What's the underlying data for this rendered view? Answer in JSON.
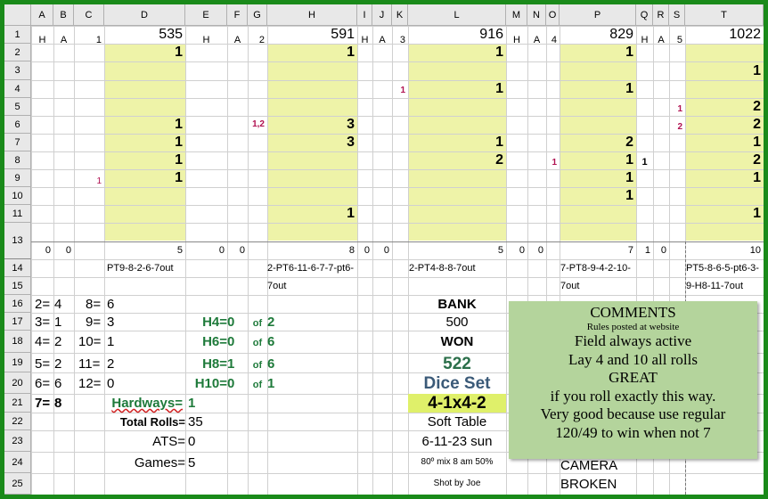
{
  "columns": [
    "A",
    "B",
    "C",
    "D",
    "E",
    "F",
    "G",
    "H",
    "I",
    "J",
    "K",
    "L",
    "M",
    "N",
    "O",
    "P",
    "Q",
    "R",
    "S",
    "T"
  ],
  "rows": [
    "1",
    "2",
    "3",
    "4",
    "5",
    "6",
    "7",
    "8",
    "9",
    "10",
    "11",
    "13",
    "14",
    "15",
    "16",
    "17",
    "18",
    "19",
    "20",
    "21",
    "22",
    "23",
    "24",
    "25"
  ],
  "row1": {
    "a": "H",
    "b": "A",
    "c": "1",
    "d": "535",
    "e": "H",
    "f": "A",
    "g": "2",
    "h": "591",
    "i": "H",
    "j": "A",
    "k": "3",
    "l": "916",
    "m": "H",
    "n": "A",
    "o": "4",
    "p": "829",
    "q": "H",
    "r": "A",
    "s": "5",
    "t": "1022"
  },
  "d_col": {
    "r2": "1",
    "r6": "1",
    "r7": "1",
    "r8": "1",
    "r9": "1"
  },
  "c_col": {
    "r9": "1"
  },
  "g_col": {
    "r6": "1,2"
  },
  "h_col": {
    "r2": "1",
    "r6": "3",
    "r7": "3",
    "r11": "1"
  },
  "k_col": {
    "r4": "1"
  },
  "l_col": {
    "r2": "1",
    "r4": "1",
    "r7": "1",
    "r8": "2"
  },
  "o_col": {
    "r8": "1"
  },
  "p_col": {
    "r2": "1",
    "r4": "1",
    "r7": "2",
    "r8": "1",
    "r9": "1",
    "r10": "1"
  },
  "q_col": {
    "r8": "1"
  },
  "s_col": {
    "r5": "1",
    "r6": "2"
  },
  "t_col": {
    "r3": "1",
    "r5": "2",
    "r6": "2",
    "r7": "1",
    "r8": "2",
    "r9": "1",
    "r11": "1"
  },
  "row13": {
    "a": "0",
    "b": "0",
    "d": "5",
    "e": "0",
    "f": "0",
    "h": "8",
    "i": "0",
    "j": "0",
    "l": "5",
    "m": "0",
    "n": "0",
    "p": "7",
    "q": "1",
    "r": "0",
    "t": "10"
  },
  "row14": {
    "d": "PT9-8-2-6-7out",
    "h": "2-PT6-11-6-7-7-pt6-",
    "l": "2-PT4-8-8-7out",
    "p": "7-PT8-9-4-2-10-",
    "t": "PT5-8-6-5-pt6-3-"
  },
  "row15": {
    "h": "7out",
    "p": "7out",
    "t": "9-H8-11-7out"
  },
  "stats_left": [
    {
      "a": "2=",
      "b": "4",
      "c": "8=",
      "d": "6"
    },
    {
      "a": "3=",
      "b": "1",
      "c": "9=",
      "d": "3"
    },
    {
      "a": "4=",
      "b": "2",
      "c": "10=",
      "d": "1"
    },
    {
      "a": "5=",
      "b": "2",
      "c": "11=",
      "d": "2"
    },
    {
      "a": "6=",
      "b": "6",
      "c": "12=",
      "d": "0"
    },
    {
      "a": "7=",
      "b": "8"
    }
  ],
  "hardways": [
    {
      "label": "H4=",
      "val": "0",
      "of": "of",
      "total": "2"
    },
    {
      "label": "H6=",
      "val": "0",
      "of": "of",
      "total": "6"
    },
    {
      "label": "H8=",
      "val": "1",
      "of": "of",
      "total": "6"
    },
    {
      "label": "H10=",
      "val": "0",
      "of": "of",
      "total": "1"
    }
  ],
  "hardways_total": {
    "label": "Hardways=",
    "val": "1"
  },
  "total_rolls": {
    "label": "Total Rolls=",
    "val": "35"
  },
  "ats": {
    "label": "ATS=",
    "val": "0"
  },
  "games": {
    "label": "Games=",
    "val": "5"
  },
  "middle": {
    "bank_label": "BANK",
    "bank_val": "500",
    "won_label": "WON",
    "won_val": "522",
    "dice_set_label": "Dice Set",
    "dice_set_val": "4-1x4-2",
    "table": "Soft Table",
    "date": "6-11-23 sun",
    "weather": "80º mix 8 am 50%",
    "shot_by": "Shot by Joe"
  },
  "camera": {
    "line1": "CAMERA",
    "line2": "BROKEN"
  },
  "comments": {
    "title": "COMMENTS",
    "sub": "Rules posted at website",
    "lines": [
      "Field always active",
      "Lay 4 and 10 all rolls",
      "GREAT",
      "if you roll exactly this way.",
      "Very good because use regular",
      "120/49 to win when not 7"
    ]
  },
  "colors": {
    "frame": "#1a8a1a",
    "highlight": "#eef3a8",
    "hardway_green": "#1e7a3a",
    "comment_bg": "#b4d49c",
    "dice_set_blue": "#3b5a78",
    "dice_set_bg": "#dff06a"
  }
}
